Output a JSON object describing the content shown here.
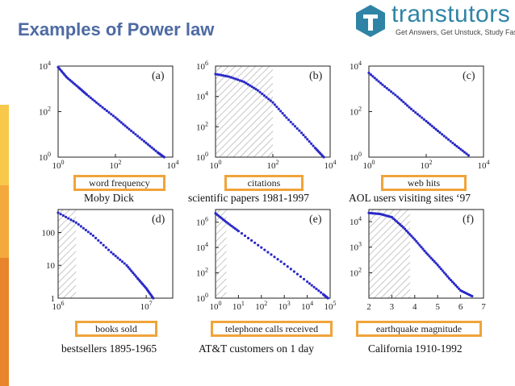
{
  "slide": {
    "title": "Examples of Power law",
    "logo": {
      "brand": "transtutors",
      "tagline": "Get Answers, Get Unstuck, Study Faster"
    },
    "accent_colors": [
      "#4e6aa3",
      "#f0a43a",
      "#2a2ac8"
    ]
  },
  "chart_data": [
    {
      "type": "scatter",
      "panel": "(a)",
      "xlabel": "word frequency",
      "caption": "Moby Dick",
      "xscale": "log",
      "yscale": "log",
      "xticks": [
        "10^0",
        "10^2",
        "10^4"
      ],
      "yticks": [
        "10^0",
        "10^2",
        "10^4"
      ],
      "xlim": [
        1,
        10000
      ],
      "ylim": [
        1,
        10000
      ],
      "points": [
        [
          1,
          9000
        ],
        [
          2,
          3200
        ],
        [
          5,
          1200
        ],
        [
          10,
          560
        ],
        [
          30,
          180
        ],
        [
          100,
          55
        ],
        [
          300,
          17
        ],
        [
          1000,
          5
        ],
        [
          3000,
          1.6
        ],
        [
          5000,
          1
        ]
      ],
      "shaded": false
    },
    {
      "type": "scatter",
      "panel": "(b)",
      "xlabel": "citations",
      "caption": "scientific papers 1981-1997",
      "xscale": "log",
      "yscale": "log",
      "xticks": [
        "10^0",
        "10^2",
        "10^4"
      ],
      "yticks": [
        "10^0",
        "10^2",
        "10^4",
        "10^6"
      ],
      "xlim": [
        1,
        10000
      ],
      "ylim": [
        1,
        1000000
      ],
      "points": [
        [
          1,
          300000
        ],
        [
          3,
          200000
        ],
        [
          10,
          90000
        ],
        [
          30,
          25000
        ],
        [
          100,
          4000
        ],
        [
          300,
          400
        ],
        [
          1000,
          40
        ],
        [
          3000,
          4
        ],
        [
          6000,
          1
        ]
      ],
      "shaded": true
    },
    {
      "type": "scatter",
      "panel": "(c)",
      "xlabel": "web hits",
      "caption": "AOL users visiting sites ‘97",
      "xscale": "log",
      "yscale": "log",
      "xticks": [
        "10^0",
        "10^2",
        "10^4"
      ],
      "yticks": [
        "10^0",
        "10^2",
        "10^4"
      ],
      "xlim": [
        1,
        10000
      ],
      "ylim": [
        1,
        10000
      ],
      "points": [
        [
          1,
          5000
        ],
        [
          3,
          1500
        ],
        [
          10,
          450
        ],
        [
          30,
          130
        ],
        [
          100,
          38
        ],
        [
          300,
          12
        ],
        [
          1000,
          3.5
        ],
        [
          3000,
          1.2
        ]
      ],
      "shaded": false
    },
    {
      "type": "scatter",
      "panel": "(d)",
      "xlabel": "books sold",
      "caption": "bestsellers 1895-1965",
      "xscale": "log",
      "yscale": "log",
      "xticks": [
        "10^6",
        "10^7"
      ],
      "yticks": [
        "1",
        "10",
        "100"
      ],
      "xlim": [
        1000000,
        20000000
      ],
      "ylim": [
        1,
        500
      ],
      "points": [
        [
          1000000,
          400
        ],
        [
          1600000,
          200
        ],
        [
          2500000,
          80
        ],
        [
          4000000,
          25
        ],
        [
          6000000,
          10
        ],
        [
          8000000,
          4
        ],
        [
          10000000,
          2
        ],
        [
          12000000,
          1
        ]
      ],
      "shaded": true
    },
    {
      "type": "scatter",
      "panel": "(e)",
      "xlabel": "telephone calls received",
      "caption": "AT&T customers on 1 day",
      "xscale": "log",
      "yscale": "log",
      "xticks": [
        "10^0",
        "10^1",
        "10^2",
        "10^3",
        "10^4",
        "10^5"
      ],
      "yticks": [
        "10^0",
        "10^2",
        "10^4",
        "10^6"
      ],
      "xlim": [
        1,
        100000
      ],
      "ylim": [
        1,
        10000000
      ],
      "points": [
        [
          1,
          5000000
        ],
        [
          3,
          1000000
        ],
        [
          10,
          200000
        ],
        [
          100,
          10000
        ],
        [
          1000,
          500
        ],
        [
          10000,
          20
        ],
        [
          50000,
          2
        ],
        [
          80000,
          1
        ]
      ],
      "shaded": true
    },
    {
      "type": "scatter",
      "panel": "(f)",
      "xlabel": "earthquake magnitude",
      "caption": "California 1910-1992",
      "xscale": "linear",
      "yscale": "log",
      "xticks": [
        "2",
        "3",
        "4",
        "5",
        "6",
        "7"
      ],
      "yticks": [
        "10^2",
        "10^3",
        "10^4"
      ],
      "xlim": [
        2,
        7
      ],
      "ylim": [
        10,
        30000
      ],
      "points": [
        [
          2,
          22000
        ],
        [
          2.5,
          20000
        ],
        [
          3,
          15000
        ],
        [
          3.5,
          6000
        ],
        [
          4,
          2000
        ],
        [
          4.5,
          600
        ],
        [
          5,
          200
        ],
        [
          5.5,
          60
        ],
        [
          6,
          20
        ],
        [
          6.5,
          12
        ]
      ],
      "shaded": true
    }
  ]
}
